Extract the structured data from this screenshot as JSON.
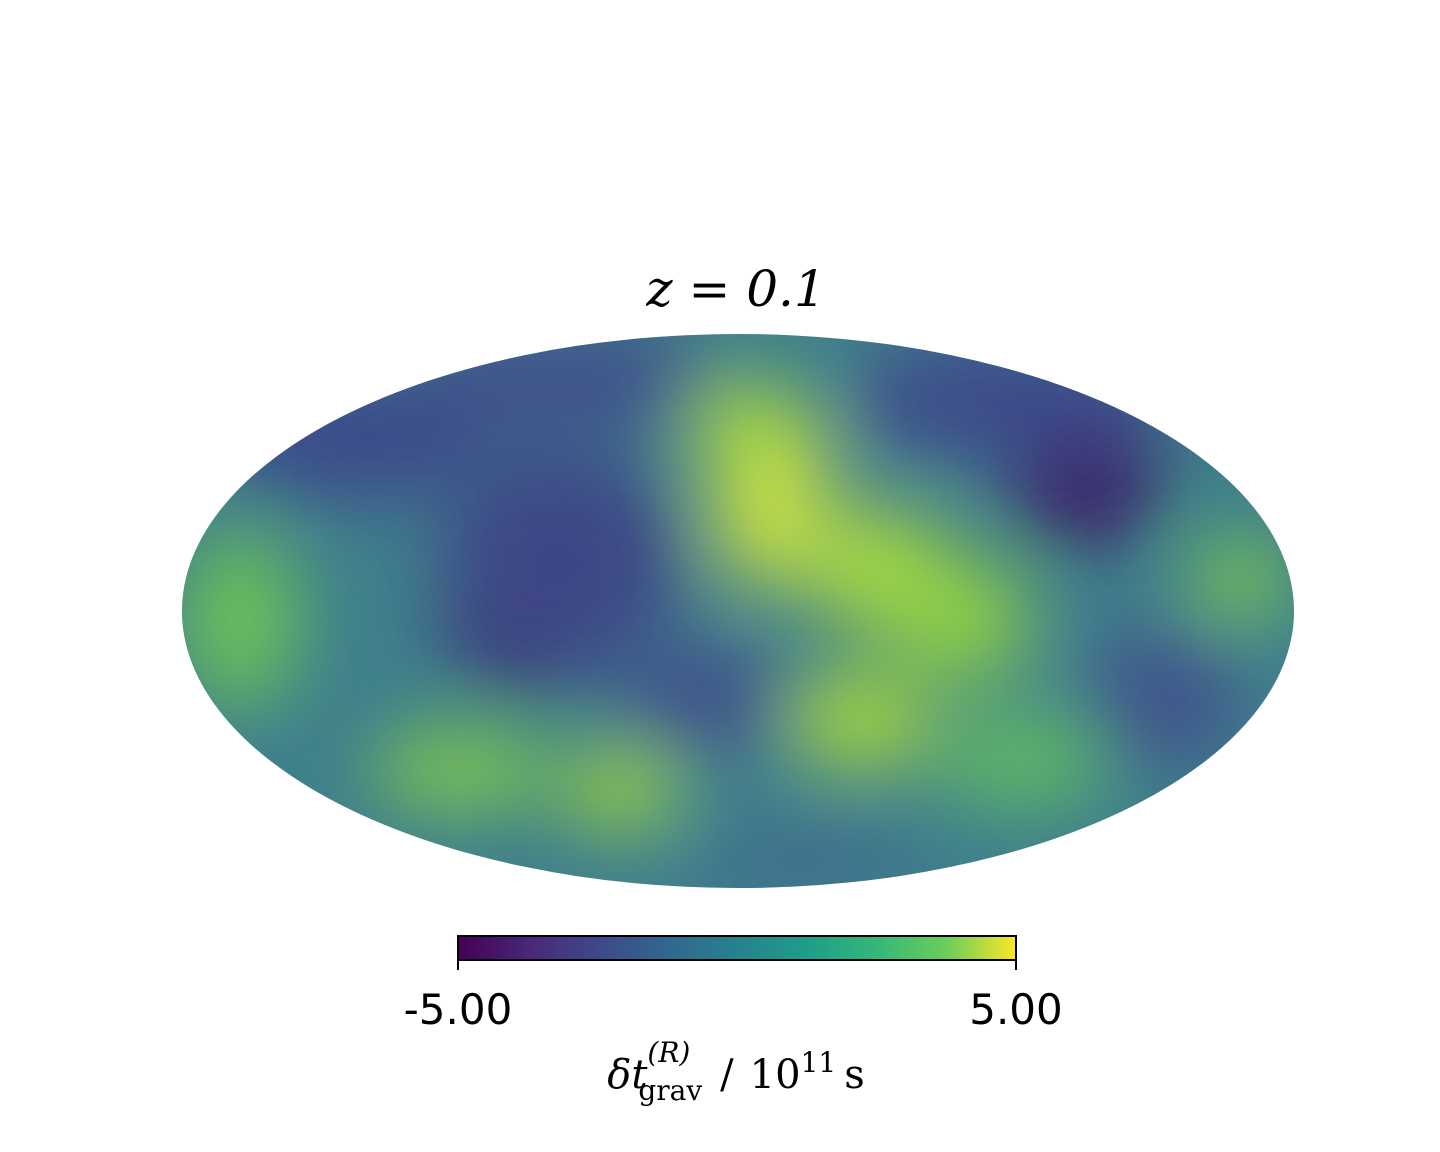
{
  "chart_data": {
    "type": "sky-map",
    "title": "z = 0.1",
    "projection": "mollweide",
    "colormap": "viridis",
    "colorbar": {
      "clim": [
        -5,
        5
      ],
      "ticks": [
        {
          "value": -5,
          "label": "-5.00"
        },
        {
          "value": 5,
          "label": "5.00"
        }
      ],
      "label": {
        "symbol": "δt",
        "superscript": "(R)",
        "subscript": "grav",
        "separator": "/",
        "unit_base": "10",
        "unit_exponent": "11",
        "unit": "s"
      }
    }
  }
}
